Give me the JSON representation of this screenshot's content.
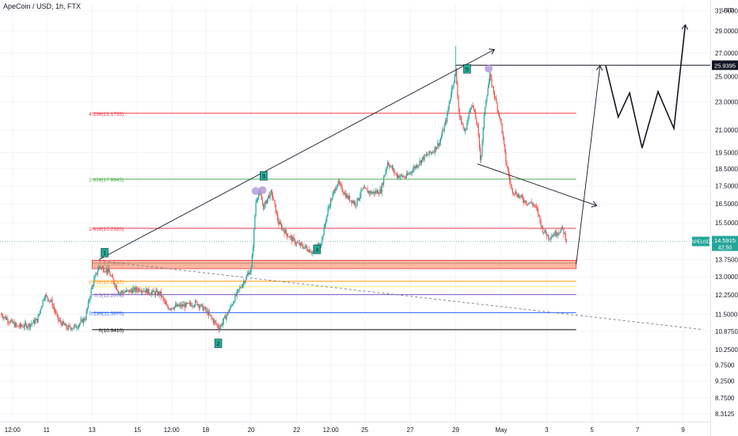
{
  "header": {
    "symbol_line": "ApeCoin / USD, 1h, FTX",
    "currency": "USD"
  },
  "colors": {
    "bull": "#26a69a",
    "bear": "#ef5350",
    "grid": "#f0f3fa",
    "axis_text": "#131722",
    "fib_0": "#000000",
    "fib_0236": "#2962ff",
    "fib_05": "#7e57c2",
    "fib_0618": "#fff176",
    "fib_0702": "#ff9800",
    "fib_1618": "#f23645",
    "fib_2618": "#4caf50",
    "fib_4236": "#f23645",
    "zone_fill": "#f7a58a",
    "zone_edge": "#f23645",
    "last_price_bg": "#26a69a",
    "label_bg": "#22ab94",
    "pivot_marker": "#b39ddb"
  },
  "chart_data": {
    "type": "candlestick",
    "title": "ApeCoin / USD, 1h, FTX",
    "y_axis": {
      "scale": "log",
      "ylim": [
        8.1,
        31.6
      ],
      "ticks": [
        "31.0000",
        "29.0000",
        "27.0000",
        "25.0000",
        "23.0000",
        "21.0000",
        "19.5000",
        "18.5000",
        "17.5000",
        "16.5000",
        "15.5000",
        "13.7500",
        "13.0000",
        "12.2500",
        "11.5000",
        "10.8750",
        "10.2500",
        "9.7500",
        "9.2500",
        "8.7500",
        "8.3125"
      ],
      "top_clipped_label": "31.0000"
    },
    "x_axis": {
      "labels": [
        "12:00",
        "11",
        "13",
        "15",
        "12:00",
        "18",
        "20",
        "22",
        "12:00",
        "25",
        "27",
        "29",
        "May",
        "3",
        "5",
        "7",
        "9"
      ],
      "label_days": [
        9.5,
        11,
        13,
        15,
        16.5,
        18,
        20,
        22,
        23.5,
        25,
        27,
        29,
        31,
        33,
        35,
        37,
        39
      ],
      "xlim": [
        8.95,
        40.2
      ]
    },
    "last_price": {
      "symbol": "APEUSD",
      "value": "14.5915",
      "countdown": "42:50"
    },
    "target_level": {
      "value": "25.9395",
      "x_start": 29.0,
      "x_end": 40.0
    },
    "fib_levels": [
      {
        "ratio": "4.236",
        "label": "4.236(22.1755)",
        "price": 22.1755,
        "color_key": "fib_4236"
      },
      {
        "ratio": "2.618",
        "label": "2.618(17.8845)",
        "price": 17.8845,
        "color_key": "fib_2618"
      },
      {
        "ratio": "1.618",
        "label": "1.618(15.2320)",
        "price": 15.232,
        "color_key": "fib_1618"
      },
      {
        "ratio": "1",
        "label": "1(13.5930)",
        "price": 13.593,
        "color_key": "fib_0"
      },
      {
        "ratio": "0.702",
        "label": "0.702(12.8092)",
        "price": 12.8092,
        "color_key": "fib_0702"
      },
      {
        "ratio": "0.618",
        "label": "",
        "price": 12.58,
        "color_key": "fib_0618"
      },
      {
        "ratio": "0.5",
        "label": "0.5(12.2670)",
        "price": 12.267,
        "color_key": "fib_05"
      },
      {
        "ratio": "0.236",
        "label": "0.236(11.5670)",
        "price": 11.567,
        "color_key": "fib_0236"
      },
      {
        "ratio": "0",
        "label": "0(10.9410)",
        "price": 10.941,
        "color_key": "fib_0"
      }
    ],
    "fib_x_range": [
      13.0,
      34.3
    ],
    "supply_zone": {
      "low": 13.35,
      "high": 13.72,
      "x_start": 13.0,
      "x_end": 34.3
    },
    "wave_labels": [
      {
        "text": "1",
        "x": 13.55,
        "price": 14.05
      },
      {
        "text": "2",
        "x": 18.55,
        "price": 10.45
      },
      {
        "text": "3",
        "x": 20.55,
        "price": 18.05
      },
      {
        "text": "4",
        "x": 22.9,
        "price": 14.2
      },
      {
        "text": "5",
        "x": 29.5,
        "price": 25.6
      }
    ],
    "pivot_markers": [
      {
        "x": 20.2,
        "price": 17.2
      },
      {
        "x": 20.5,
        "price": 17.25
      },
      {
        "x": 30.45,
        "price": 25.65
      }
    ],
    "trendlines": [
      {
        "points": [
          [
            13.3,
            13.75
          ],
          [
            30.7,
            27.3
          ]
        ],
        "arrow": true,
        "dashed": false,
        "color": "#131722"
      },
      {
        "points": [
          [
            13.3,
            13.7
          ],
          [
            39.9,
            10.94
          ]
        ],
        "arrow": false,
        "dashed": true,
        "color": "#787b86"
      },
      {
        "points": [
          [
            29.95,
            18.8
          ],
          [
            35.2,
            16.4
          ]
        ],
        "arrow": true,
        "dashed": false,
        "color": "#131722"
      }
    ],
    "projection": {
      "points": [
        [
          34.3,
          13.55
        ],
        [
          35.35,
          25.9
        ]
      ],
      "path": [
        [
          35.6,
          25.9
        ],
        [
          36.15,
          21.9
        ],
        [
          36.65,
          23.7
        ],
        [
          37.2,
          19.8
        ],
        [
          37.9,
          23.8
        ],
        [
          38.6,
          21.1
        ],
        [
          39.1,
          29.6
        ]
      ],
      "color": "#131722"
    },
    "series_anchors": [
      [
        9.0,
        11.5
      ],
      [
        9.3,
        11.3
      ],
      [
        9.7,
        11.05
      ],
      [
        10.2,
        11.1
      ],
      [
        10.6,
        11.3
      ],
      [
        10.9,
        12.25
      ],
      [
        11.2,
        12.0
      ],
      [
        11.5,
        11.3
      ],
      [
        11.9,
        11.0
      ],
      [
        12.3,
        11.05
      ],
      [
        12.7,
        11.35
      ],
      [
        13.0,
        12.6
      ],
      [
        13.3,
        13.45
      ],
      [
        13.7,
        13.25
      ],
      [
        14.0,
        12.7
      ],
      [
        14.2,
        12.35
      ],
      [
        14.6,
        12.4
      ],
      [
        15.1,
        12.5
      ],
      [
        15.6,
        12.35
      ],
      [
        16.0,
        12.3
      ],
      [
        16.3,
        11.75
      ],
      [
        16.7,
        11.8
      ],
      [
        17.2,
        11.85
      ],
      [
        17.6,
        11.95
      ],
      [
        18.0,
        11.65
      ],
      [
        18.3,
        11.3
      ],
      [
        18.6,
        11.0
      ],
      [
        19.0,
        11.6
      ],
      [
        19.4,
        12.35
      ],
      [
        19.7,
        12.85
      ],
      [
        20.0,
        13.35
      ],
      [
        20.1,
        14.6
      ],
      [
        20.2,
        16.6
      ],
      [
        20.35,
        17.2
      ],
      [
        20.55,
        16.3
      ],
      [
        20.75,
        16.9
      ],
      [
        20.9,
        17.1
      ],
      [
        21.2,
        15.5
      ],
      [
        21.6,
        14.9
      ],
      [
        22.0,
        14.5
      ],
      [
        22.4,
        14.3
      ],
      [
        22.7,
        14.1
      ],
      [
        23.1,
        14.6
      ],
      [
        23.4,
        16.3
      ],
      [
        23.8,
        17.7
      ],
      [
        24.2,
        16.9
      ],
      [
        24.6,
        16.5
      ],
      [
        24.9,
        17.3
      ],
      [
        25.3,
        17.1
      ],
      [
        25.7,
        17.2
      ],
      [
        26.0,
        18.9
      ],
      [
        26.4,
        18.1
      ],
      [
        26.8,
        18.0
      ],
      [
        27.2,
        18.6
      ],
      [
        27.6,
        19.2
      ],
      [
        28.0,
        19.6
      ],
      [
        28.3,
        20.2
      ],
      [
        28.6,
        21.8
      ],
      [
        28.8,
        23.8
      ],
      [
        29.0,
        25.4
      ],
      [
        29.15,
        22.0
      ],
      [
        29.4,
        20.8
      ],
      [
        29.7,
        23.0
      ],
      [
        29.95,
        21.3
      ],
      [
        30.1,
        18.9
      ],
      [
        30.3,
        22.9
      ],
      [
        30.5,
        25.0
      ],
      [
        30.8,
        22.8
      ],
      [
        31.0,
        21.4
      ],
      [
        31.2,
        19.0
      ],
      [
        31.45,
        17.3
      ],
      [
        31.8,
        16.9
      ],
      [
        32.1,
        16.6
      ],
      [
        32.4,
        16.5
      ],
      [
        32.6,
        16.1
      ],
      [
        32.8,
        15.2
      ],
      [
        33.1,
        14.8
      ],
      [
        33.4,
        15.0
      ],
      [
        33.7,
        15.2
      ],
      [
        33.9,
        14.59
      ]
    ]
  }
}
